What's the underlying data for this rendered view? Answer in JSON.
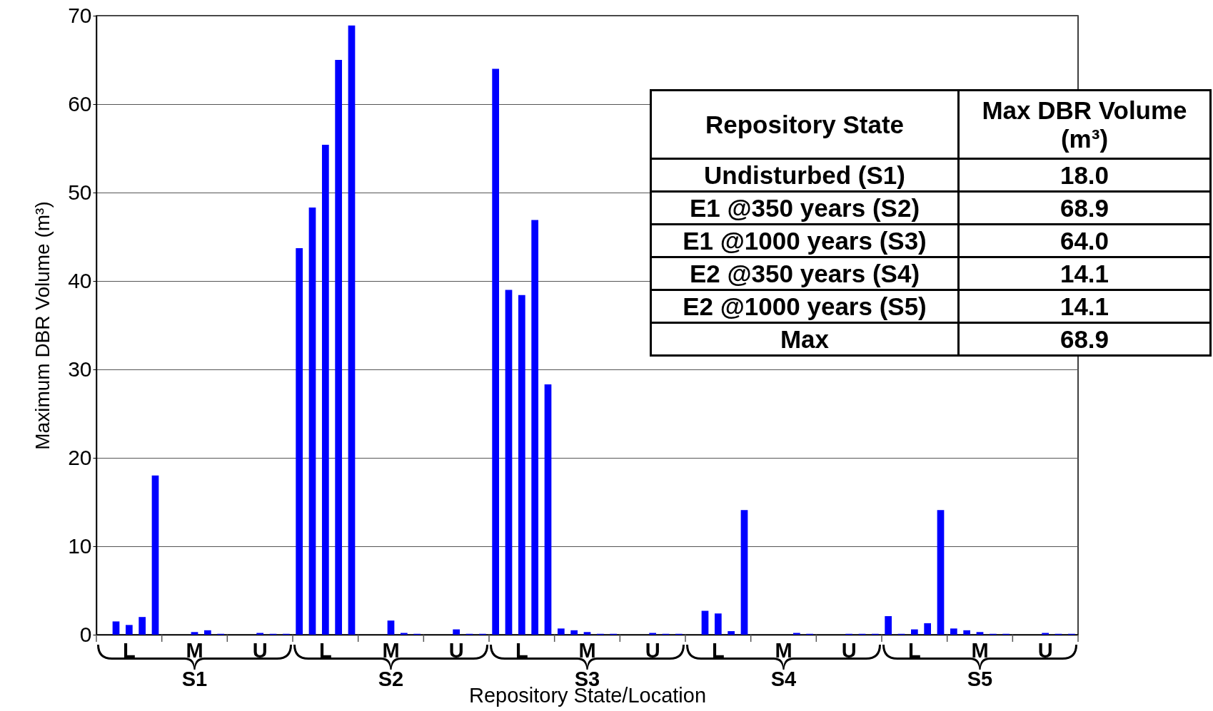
{
  "chart_data": {
    "type": "bar",
    "xlabel": "Repository State/Location",
    "ylabel": "Maximum DBR Volume (m³)",
    "categories": [
      null,
      null,
      "L",
      null,
      null,
      null,
      null,
      "M",
      null,
      null,
      null,
      null,
      "U",
      null,
      null,
      null,
      null,
      "L",
      null,
      null,
      null,
      null,
      "M",
      null,
      null,
      null,
      null,
      "U",
      null,
      null,
      null,
      null,
      "L",
      null,
      null,
      null,
      null,
      "M",
      null,
      null,
      null,
      null,
      "U",
      null,
      null,
      null,
      null,
      "L",
      null,
      null,
      null,
      null,
      "M",
      null,
      null,
      null,
      null,
      "U",
      null,
      null,
      null,
      null,
      "L",
      null,
      null,
      null,
      null,
      "M",
      null,
      null,
      null,
      null,
      "U",
      null,
      null
    ],
    "values": [
      0,
      1.5,
      1.1,
      2.0,
      18.0,
      0,
      0,
      0.3,
      0.5,
      0.1,
      0,
      0,
      0.2,
      0.1,
      0.1,
      43.7,
      48.3,
      55.4,
      65.0,
      68.9,
      0,
      0,
      1.6,
      0.2,
      0.1,
      0,
      0,
      0.6,
      0.1,
      0.1,
      64.0,
      39.0,
      38.4,
      46.9,
      28.3,
      0.7,
      0.5,
      0.3,
      0.1,
      0.1,
      0,
      0,
      0.2,
      0.1,
      0.1,
      0,
      2.7,
      2.4,
      0.4,
      14.1,
      0,
      0,
      0,
      0.2,
      0.1,
      0,
      0,
      0.1,
      0.1,
      0.1,
      2.1,
      0.1,
      0.6,
      1.3,
      14.1,
      0.7,
      0.5,
      0.3,
      0.1,
      0.1,
      0,
      0,
      0.2,
      0.1,
      0.1
    ],
    "color": "#0000ff",
    "ylim": [
      0,
      70
    ],
    "yticks": [
      0,
      10,
      20,
      30,
      40,
      50,
      60,
      70
    ],
    "grid": "y",
    "annotations": [
      "S1",
      "S2",
      "S3",
      "S4",
      "S5",
      "Repository State",
      "Max DBR Volume (m³)",
      "Undisturbed (S1)",
      "18.0",
      "E1 @350 years (S2)",
      "68.9",
      "E1 @1000 years (S3)",
      "64.0",
      "E2 @350 years (S4)",
      "14.1",
      "E2 @1000 years (S5)",
      "14.1",
      "Max",
      "68.9"
    ]
  }
}
